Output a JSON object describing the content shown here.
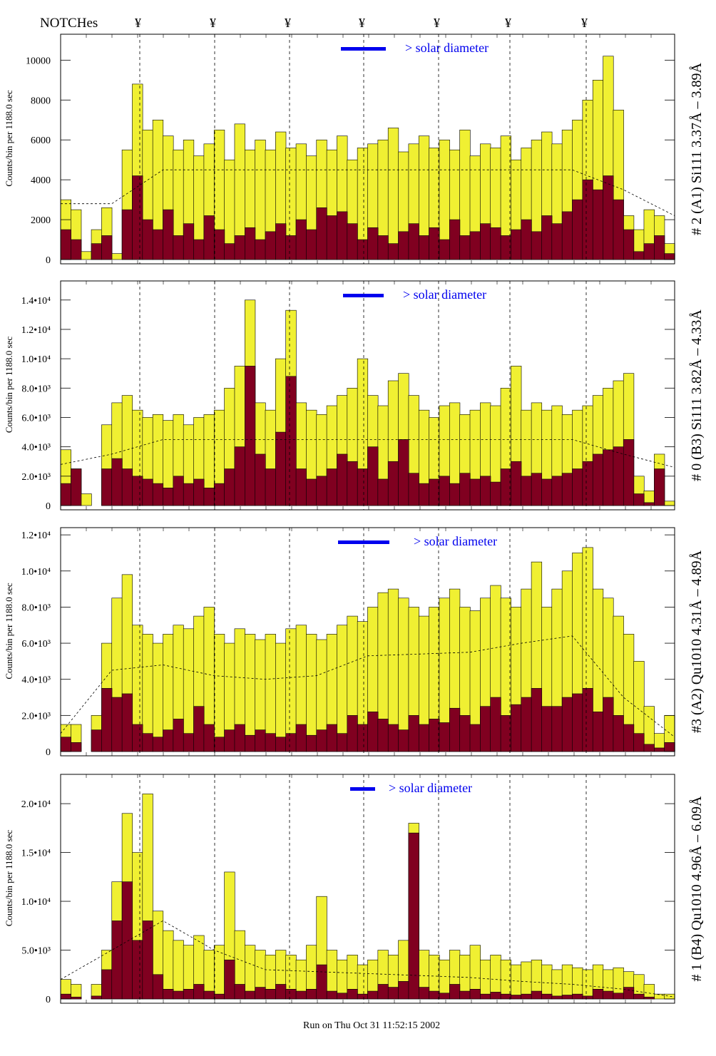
{
  "header": {
    "notches_label": "NOTCHes",
    "notch_symbol": "¥",
    "notch_count": 7
  },
  "footer": {
    "run_text": "Run on Thu Oct 31 11:52:15 2002"
  },
  "colors": {
    "fill_total": "#f0f032",
    "fill_sub": "#800020",
    "legend_bar": "#0000ee",
    "legend_text": "#0000ee"
  },
  "chart_data": [
    {
      "type": "bar",
      "title": "# 2 (A1) Si111  3.37Å – 3.89Å",
      "ylabel": "Counts/bin per   1188.0 sec",
      "legend": "> solar diameter",
      "ylim": [
        0,
        11300
      ],
      "ticks": [
        0,
        2000,
        4000,
        6000,
        8000,
        10000
      ],
      "tick_labels": [
        "0",
        "2000",
        "4000",
        "6000",
        "8000",
        "10000"
      ],
      "total": [
        3000,
        2500,
        400,
        1500,
        2600,
        300,
        5500,
        8800,
        6500,
        7000,
        6200,
        5500,
        6000,
        5200,
        5800,
        6500,
        5000,
        6800,
        5500,
        6000,
        5500,
        6400,
        5600,
        5800,
        5200,
        6000,
        5500,
        6200,
        5000,
        5600,
        5800,
        6000,
        6600,
        5400,
        5800,
        6200,
        5600,
        6000,
        5500,
        6500,
        5200,
        5800,
        5600,
        6200,
        5000,
        5600,
        6000,
        6400,
        5800,
        6500,
        7000,
        8000,
        9000,
        10200,
        7500,
        2200,
        1500,
        2500,
        2200,
        800
      ],
      "sub": [
        1500,
        1000,
        0,
        800,
        1200,
        0,
        2500,
        4200,
        2000,
        1500,
        2500,
        1200,
        1800,
        1000,
        2200,
        1500,
        800,
        1200,
        1600,
        1000,
        1400,
        1800,
        1200,
        2000,
        1500,
        2600,
        2200,
        2400,
        1800,
        1000,
        1600,
        1200,
        800,
        1400,
        1800,
        1200,
        1600,
        1000,
        2000,
        1200,
        1400,
        1800,
        1600,
        1200,
        1500,
        2000,
        1400,
        2200,
        1800,
        2400,
        3000,
        4000,
        3500,
        4200,
        3000,
        1500,
        400,
        800,
        1200,
        300
      ],
      "model": [
        2800,
        2800,
        4500,
        4500,
        4500,
        4500,
        4500,
        4500,
        4500,
        4500,
        4500,
        3500,
        2200
      ]
    },
    {
      "type": "bar",
      "title": "# 0 (B3) Si111  3.82Å – 4.33Å",
      "ylabel": "Counts/bin per   1188.0 sec",
      "legend": "> solar diameter",
      "ylim": [
        0,
        15300
      ],
      "ticks": [
        0,
        2000,
        4000,
        6000,
        8000,
        10000,
        12000,
        14000
      ],
      "tick_labels": [
        "0",
        "2.0•10³",
        "4.0•10³",
        "6.0•10³",
        "8.0•10³",
        "1.0•10⁴",
        "1.2•10⁴",
        "1.4•10⁴"
      ],
      "total": [
        3800,
        2500,
        800,
        0,
        5500,
        7000,
        7500,
        6500,
        6000,
        6200,
        5800,
        6200,
        5500,
        6000,
        6200,
        6500,
        8000,
        9500,
        14000,
        7000,
        6500,
        10000,
        13300,
        7000,
        6500,
        6200,
        6800,
        7500,
        8000,
        10000,
        7500,
        6800,
        8500,
        9000,
        7500,
        6500,
        6000,
        6800,
        7000,
        6200,
        6500,
        7000,
        6800,
        8000,
        9500,
        6500,
        7000,
        6500,
        6800,
        6200,
        6500,
        6800,
        7500,
        8000,
        8500,
        9000,
        2000,
        1000,
        3500,
        300
      ],
      "sub": [
        1500,
        2500,
        0,
        0,
        2500,
        3200,
        2500,
        2000,
        1800,
        1500,
        1200,
        2000,
        1500,
        1800,
        1200,
        1500,
        2500,
        4000,
        9500,
        3500,
        2500,
        5000,
        8800,
        2500,
        1800,
        2000,
        2500,
        3500,
        3000,
        2500,
        4000,
        1800,
        3000,
        4500,
        2200,
        1500,
        1800,
        2000,
        1500,
        2200,
        1800,
        2000,
        1600,
        2500,
        3000,
        2000,
        2200,
        1800,
        2000,
        2200,
        2500,
        3000,
        3500,
        3800,
        4000,
        4500,
        800,
        200,
        2500,
        0
      ],
      "model": [
        2800,
        3500,
        4500,
        4500,
        4500,
        4500,
        4500,
        4500,
        4500,
        4500,
        4500,
        3500,
        2600
      ]
    },
    {
      "type": "bar",
      "title": "#3 (A2) Qu1010  4.31Å – 4.89Å",
      "ylabel": "Counts/bin per   1188.0 sec",
      "legend": "> solar diameter",
      "ylim": [
        0,
        12400
      ],
      "ticks": [
        0,
        2000,
        4000,
        6000,
        8000,
        10000,
        12000
      ],
      "tick_labels": [
        "0",
        "2.0•10³",
        "4.0•10³",
        "6.0•10³",
        "8.0•10³",
        "1.0•10⁴",
        "1.2•10⁴"
      ],
      "total": [
        1500,
        1500,
        0,
        2000,
        6000,
        8500,
        9800,
        7000,
        6500,
        6000,
        6500,
        7000,
        6800,
        7500,
        8000,
        6500,
        6000,
        6800,
        6500,
        6200,
        6500,
        6000,
        6800,
        7000,
        6500,
        6200,
        6500,
        7000,
        7500,
        7200,
        8000,
        8800,
        9000,
        8500,
        8000,
        7500,
        8000,
        8500,
        9000,
        8000,
        7800,
        8500,
        9200,
        8500,
        8000,
        9000,
        10500,
        8000,
        9000,
        10000,
        11000,
        11300,
        9000,
        8500,
        7500,
        6500,
        5000,
        2500,
        1000,
        2000
      ],
      "sub": [
        800,
        500,
        0,
        1200,
        3500,
        3000,
        3200,
        1500,
        1000,
        800,
        1200,
        1800,
        1000,
        2500,
        1500,
        800,
        1200,
        1500,
        900,
        1200,
        1000,
        800,
        1000,
        1500,
        900,
        1200,
        1500,
        1000,
        2000,
        1500,
        2200,
        1800,
        1500,
        1200,
        2000,
        1500,
        1800,
        1600,
        2400,
        2000,
        1500,
        2500,
        3000,
        2000,
        2600,
        3000,
        3500,
        2500,
        2500,
        3000,
        3200,
        3500,
        2200,
        3000,
        2000,
        1500,
        1000,
        400,
        200,
        500
      ],
      "model": [
        1000,
        4500,
        4800,
        4200,
        4000,
        4200,
        5300,
        5400,
        5500,
        6000,
        6400,
        3000,
        800
      ]
    },
    {
      "type": "bar",
      "title": "# 1 (B4) Qu1010 4.96Å – 6.09Å",
      "ylabel": "Counts/bin per   1188.0 sec",
      "legend": "> solar diameter",
      "ylim": [
        0,
        23000
      ],
      "ticks": [
        0,
        5000,
        10000,
        15000,
        20000
      ],
      "tick_labels": [
        "0",
        "5.0•10³",
        "1.0•10⁴",
        "1.5•10⁴",
        "2.0•10⁴"
      ],
      "total": [
        2000,
        1500,
        0,
        1500,
        5000,
        12000,
        19000,
        15000,
        21000,
        9000,
        7000,
        6000,
        5500,
        6500,
        5000,
        5500,
        13000,
        7000,
        5500,
        5000,
        4500,
        5000,
        4500,
        4000,
        5500,
        10500,
        5000,
        4000,
        4500,
        3500,
        4000,
        5000,
        4500,
        6000,
        18000,
        5000,
        4500,
        4000,
        5000,
        4500,
        5500,
        4000,
        4500,
        4000,
        3500,
        3800,
        4000,
        3500,
        3000,
        3500,
        3200,
        3000,
        3500,
        3000,
        3200,
        2800,
        2500,
        1500,
        500,
        500
      ],
      "sub": [
        500,
        200,
        0,
        300,
        3000,
        8000,
        12000,
        6000,
        8000,
        2500,
        1000,
        800,
        1000,
        1500,
        800,
        500,
        4000,
        1500,
        800,
        1200,
        1000,
        1500,
        1000,
        800,
        1000,
        3500,
        800,
        600,
        1000,
        500,
        800,
        1500,
        1200,
        1800,
        17000,
        1200,
        800,
        600,
        1500,
        800,
        1000,
        500,
        700,
        500,
        400,
        500,
        800,
        500,
        300,
        400,
        500,
        300,
        1000,
        800,
        600,
        1200,
        500,
        200,
        0,
        0
      ],
      "model": [
        2000,
        5000,
        8000,
        5000,
        3000,
        2800,
        2600,
        2400,
        2200,
        1800,
        1500,
        1000,
        200
      ]
    }
  ]
}
